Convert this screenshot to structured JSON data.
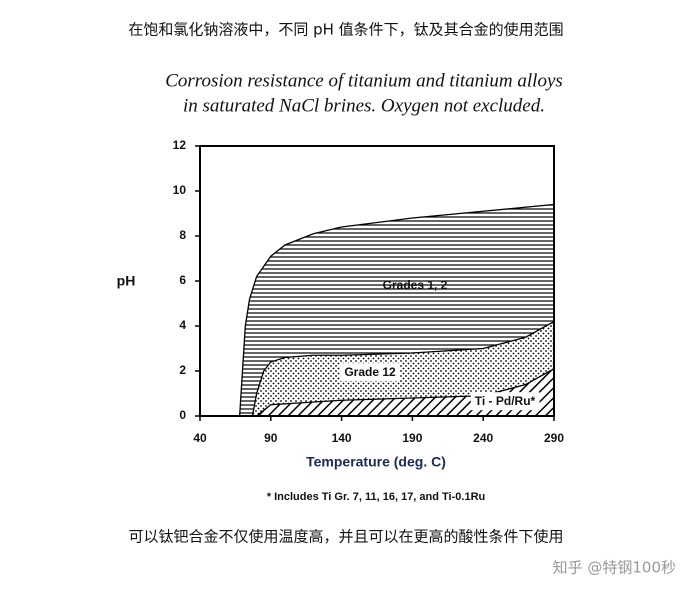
{
  "caption_top": "在饱和氯化钠溶液中，不同 pH 值条件下，钛及其合金的使用范围",
  "chart_data": {
    "type": "area",
    "title_lines": [
      "Corrosion resistance of titanium and titanium alloys",
      "in saturated NaCl brines.  Oxygen not excluded."
    ],
    "xlabel": "Temperature (deg. C)",
    "ylabel": "pH",
    "xlim": [
      40,
      290
    ],
    "ylim": [
      0,
      12
    ],
    "xticks": [
      40,
      90,
      140,
      190,
      240,
      290
    ],
    "yticks": [
      0,
      2,
      4,
      6,
      8,
      10,
      12
    ],
    "series": [
      {
        "name": "Grades 1, 2",
        "color": "#000000",
        "pattern": "horizontal",
        "x": [
          68,
          70,
          72,
          75,
          80,
          90,
          100,
          120,
          140,
          190,
          240,
          290
        ],
        "values": [
          0,
          2,
          4,
          5.2,
          6.2,
          7.1,
          7.6,
          8.1,
          8.4,
          8.8,
          9.1,
          9.4
        ]
      },
      {
        "name": "Grade 12",
        "color": "#000000",
        "pattern": "dots",
        "x": [
          77,
          80,
          85,
          90,
          100,
          120,
          140,
          190,
          240,
          270,
          290
        ],
        "values": [
          0,
          1,
          2,
          2.4,
          2.6,
          2.7,
          2.7,
          2.8,
          3.0,
          3.5,
          4.2
        ]
      },
      {
        "name": "Ti - Pd/Ru*",
        "color": "#000000",
        "pattern": "hatch",
        "x": [
          80,
          90,
          140,
          190,
          240,
          270,
          290
        ],
        "values": [
          0,
          0.5,
          0.7,
          0.8,
          0.9,
          1.4,
          2.1
        ]
      }
    ],
    "footnote": "* Includes Ti Gr. 7, 11, 16, 17, and Ti-0.1Ru"
  },
  "caption_bottom": "可以钛钯合金不仅使用温度高，并且可以在更高的酸性条件下使用",
  "watermark": "知乎 @特钢100秒"
}
